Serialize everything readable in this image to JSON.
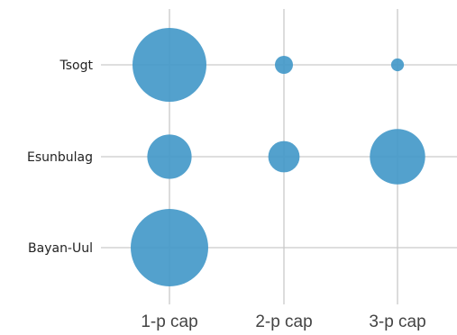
{
  "chart_data": {
    "type": "scatter",
    "x_categories": [
      "1-p cap",
      "2-p cap",
      "3-p cap"
    ],
    "y_categories": [
      "Tsogt",
      "Esunbulag",
      "Bayan-Uul"
    ],
    "series": [
      {
        "points": [
          {
            "x": "1-p cap",
            "y": "Tsogt",
            "size": 100
          },
          {
            "x": "2-p cap",
            "y": "Tsogt",
            "size": 6
          },
          {
            "x": "3-p cap",
            "y": "Tsogt",
            "size": 3
          },
          {
            "x": "1-p cap",
            "y": "Esunbulag",
            "size": 36
          },
          {
            "x": "2-p cap",
            "y": "Esunbulag",
            "size": 18
          },
          {
            "x": "3-p cap",
            "y": "Esunbulag",
            "size": 56
          },
          {
            "x": "1-p cap",
            "y": "Bayan-Uul",
            "size": 110
          },
          {
            "x": "2-p cap",
            "y": "Bayan-Uul",
            "size": 0
          },
          {
            "x": "3-p cap",
            "y": "Bayan-Uul",
            "size": 0
          }
        ]
      }
    ],
    "color": "#4499c9",
    "grid": true,
    "legend": "none"
  }
}
